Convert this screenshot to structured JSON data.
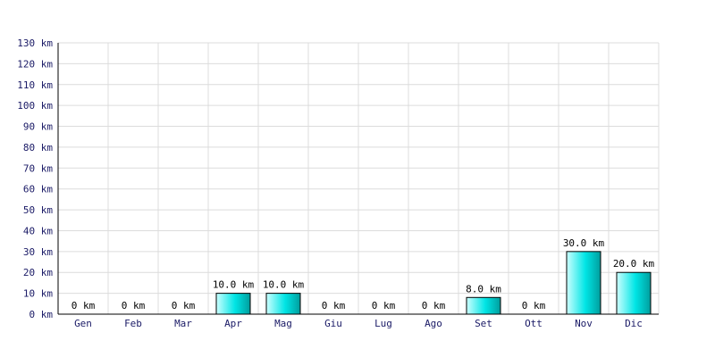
{
  "chart_data": {
    "type": "bar",
    "categories": [
      "Gen",
      "Feb",
      "Mar",
      "Apr",
      "Mag",
      "Giu",
      "Lug",
      "Ago",
      "Set",
      "Ott",
      "Nov",
      "Dic"
    ],
    "values": [
      0,
      0,
      0,
      10,
      10,
      0,
      0,
      0,
      8,
      0,
      30,
      20
    ],
    "value_labels": [
      "0 km",
      "0 km",
      "0 km",
      "10.0 km",
      "10.0 km",
      "0 km",
      "0 km",
      "0 km",
      "8.0 km",
      "0 km",
      "30.0 km",
      "20.0 km"
    ],
    "y_ticks": [
      0,
      10,
      20,
      30,
      40,
      50,
      60,
      70,
      80,
      90,
      100,
      110,
      120,
      130
    ],
    "y_tick_labels": [
      "0 km",
      "10 km",
      "20 km",
      "30 km",
      "40 km",
      "50 km",
      "60 km",
      "70 km",
      "80 km",
      "90 km",
      "100 km",
      "110 km",
      "120 km",
      "130 km"
    ],
    "ylim": [
      0,
      130
    ],
    "title": "",
    "xlabel": "",
    "ylabel": "",
    "grid": true,
    "bar_color_light": "#ccffff",
    "bar_color_mid": "#00e5e5",
    "bar_color_dark": "#009e9e"
  }
}
